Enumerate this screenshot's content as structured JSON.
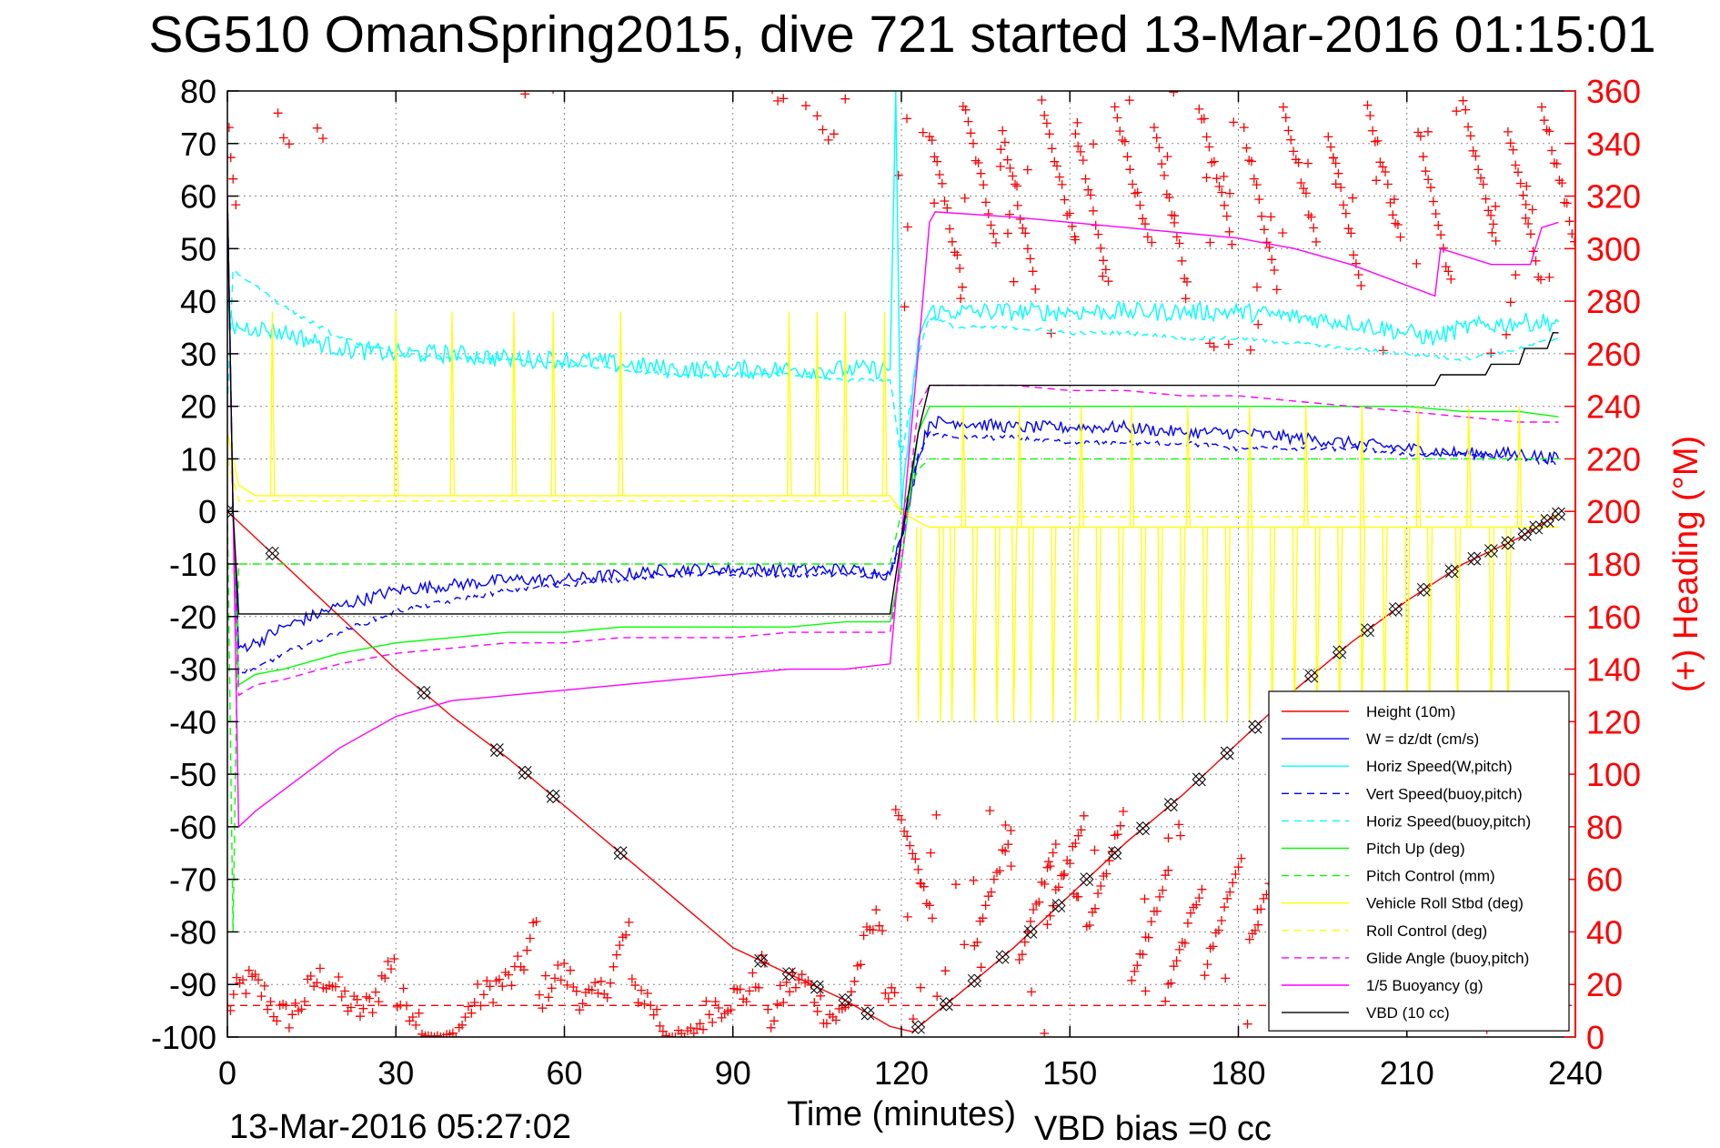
{
  "chart_data": {
    "type": "line",
    "title": "SG510 OmanSpring2015, dive 721 started 13-Mar-2016 01:15:01",
    "xlabel": "Time (minutes)",
    "ylabel": "",
    "y2label": "(+) Heading (°M)",
    "xlim": [
      0,
      240
    ],
    "ylim": [
      -100,
      80
    ],
    "y2lim": [
      0,
      360
    ],
    "x_ticks": [
      "0",
      "30",
      "60",
      "90",
      "120",
      "150",
      "180",
      "210",
      "240"
    ],
    "y_ticks": [
      "80",
      "70",
      "60",
      "50",
      "40",
      "30",
      "20",
      "10",
      "0",
      "-10",
      "-20",
      "-30",
      "-40",
      "-50",
      "-60",
      "-70",
      "-80",
      "-90",
      "-100"
    ],
    "y2_ticks": [
      "360",
      "340",
      "320",
      "300",
      "280",
      "260",
      "240",
      "220",
      "200",
      "180",
      "160",
      "140",
      "120",
      "100",
      "80",
      "60",
      "40",
      "20",
      "0"
    ],
    "grid": true,
    "footer_left": "13-Mar-2016 05:27:02",
    "footer_right": "VBD bias =0 cc",
    "legend_placement": "bottom-right",
    "series": [
      {
        "name": "Height (10m)",
        "color": "#ff0000",
        "style": "solid",
        "x": [
          0,
          10,
          20,
          30,
          40,
          50,
          60,
          70,
          80,
          90,
          100,
          110,
          118,
          122,
          130,
          140,
          150,
          160,
          170,
          180,
          190,
          200,
          210,
          220,
          230,
          237
        ],
        "y": [
          0,
          -10,
          -20,
          -30,
          -39,
          -47,
          -56,
          -65,
          -74,
          -83,
          -88,
          -93,
          -98,
          -99,
          -92,
          -83,
          -73,
          -63,
          -54,
          -44,
          -34,
          -25,
          -17,
          -10,
          -5,
          -0.5
        ]
      },
      {
        "name": "W = dz/dt (cm/s)",
        "color": "#0000ff",
        "style": "solid",
        "x": [
          0,
          1,
          2,
          5,
          10,
          20,
          30,
          40,
          50,
          60,
          70,
          80,
          90,
          100,
          110,
          118,
          120,
          123,
          125,
          130,
          140,
          150,
          160,
          170,
          180,
          190,
          200,
          210,
          220,
          230,
          237
        ],
        "y": [
          60,
          0,
          -26,
          -25,
          -22,
          -18,
          -15,
          -14,
          -13,
          -13,
          -12,
          -11,
          -11,
          -11,
          -11,
          -12,
          -5,
          10,
          17,
          17,
          16,
          16,
          16,
          15,
          15,
          14,
          13,
          12,
          11,
          11,
          10
        ]
      },
      {
        "name": "Horiz Speed(W,pitch)",
        "color": "#00ffff",
        "style": "solid",
        "x": [
          0,
          1,
          2,
          5,
          10,
          20,
          30,
          40,
          50,
          60,
          70,
          80,
          90,
          100,
          110,
          118,
          119,
          120,
          123,
          125,
          130,
          140,
          150,
          160,
          170,
          180,
          190,
          200,
          210,
          215,
          220,
          230,
          237
        ],
        "y": [
          40,
          35,
          35,
          35,
          34,
          31,
          30,
          30,
          29,
          29,
          28,
          27,
          27,
          27,
          27,
          27,
          80,
          0,
          33,
          38,
          38,
          38,
          38,
          38,
          38,
          38,
          37,
          36,
          34,
          33,
          35,
          36,
          36
        ]
      },
      {
        "name": "Vert Speed(buoy,pitch)",
        "color": "#0000ff",
        "style": "dashed",
        "x": [
          0,
          1,
          2,
          5,
          10,
          20,
          30,
          40,
          50,
          60,
          70,
          80,
          90,
          100,
          110,
          118,
          120,
          123,
          125,
          130,
          140,
          150,
          160,
          170,
          180,
          190,
          200,
          210,
          220,
          230,
          237
        ],
        "y": [
          60,
          0,
          -31,
          -30,
          -27,
          -23,
          -19,
          -17,
          -15,
          -14,
          -13,
          -12,
          -12,
          -12,
          -12,
          -12,
          -5,
          11,
          15,
          14,
          14,
          13,
          13,
          13,
          12,
          12,
          12,
          11,
          11,
          10,
          9
        ]
      },
      {
        "name": "Horiz Speed(buoy,pitch)",
        "color": "#00ffff",
        "style": "dashed",
        "x": [
          0,
          1,
          2,
          5,
          10,
          20,
          30,
          40,
          50,
          60,
          70,
          80,
          90,
          100,
          110,
          118,
          120,
          123,
          125,
          130,
          140,
          150,
          160,
          170,
          180,
          190,
          200,
          210,
          220,
          230,
          237
        ],
        "y": [
          20,
          46,
          45,
          43,
          39,
          33,
          30,
          29,
          29,
          28,
          27,
          26,
          26,
          26,
          25,
          25,
          10,
          30,
          37,
          35,
          35,
          34,
          34,
          33,
          33,
          32,
          31,
          30,
          29,
          31,
          33
        ]
      },
      {
        "name": "Pitch Up (deg)",
        "color": "#00ff00",
        "style": "solid",
        "x": [
          0,
          1,
          2,
          5,
          10,
          20,
          30,
          40,
          50,
          60,
          70,
          80,
          90,
          100,
          110,
          118,
          120,
          123,
          125,
          130,
          140,
          150,
          160,
          170,
          180,
          190,
          200,
          210,
          220,
          230,
          237
        ],
        "y": [
          60,
          0,
          -33,
          -31,
          -30,
          -27,
          -25,
          -24,
          -23,
          -23,
          -22,
          -22,
          -22,
          -22,
          -21,
          -21,
          -10,
          15,
          20,
          20,
          20,
          20,
          20,
          20,
          20,
          20,
          20,
          20,
          19,
          19,
          18
        ]
      },
      {
        "name": "Pitch Control (mm)",
        "color": "#00ff00",
        "style": "dashed",
        "x": [
          0,
          1,
          2,
          3,
          118,
          120,
          123,
          125,
          237
        ],
        "y": [
          0,
          -80,
          -10,
          -10,
          -10,
          0,
          8,
          10,
          10
        ]
      },
      {
        "name": "Vehicle Roll Stbd (deg)",
        "color": "#ffff00",
        "style": "solid",
        "x": [
          0,
          2,
          5,
          30,
          60,
          90,
          118,
          120,
          123,
          125,
          150,
          180,
          210,
          237
        ],
        "y": [
          15,
          5,
          3,
          3,
          3,
          3,
          3,
          0,
          -2,
          -3,
          -3,
          -3,
          -3,
          -3
        ]
      },
      {
        "name": "Roll Control (deg)",
        "color": "#ffff00",
        "style": "dashed",
        "x": [
          0,
          2,
          5,
          30,
          60,
          90,
          118,
          120,
          123,
          125,
          150,
          180,
          210,
          237
        ],
        "y": [
          10,
          2,
          2,
          2,
          2,
          2,
          2,
          0,
          -1,
          -1,
          -1,
          -1,
          -1,
          -1
        ]
      },
      {
        "name": "Glide Angle (buoy,pitch)",
        "color": "#ff00ff",
        "style": "dashed",
        "x": [
          0,
          1,
          2,
          5,
          10,
          20,
          30,
          40,
          50,
          60,
          70,
          80,
          90,
          100,
          110,
          118,
          120,
          123,
          125,
          130,
          140,
          150,
          160,
          170,
          180,
          190,
          200,
          210,
          220,
          230,
          237
        ],
        "y": [
          60,
          0,
          -35,
          -33,
          -32,
          -29,
          -27,
          -26,
          -25,
          -25,
          -24,
          -24,
          -24,
          -23,
          -23,
          -23,
          -10,
          20,
          24,
          24,
          24,
          23,
          23,
          22,
          22,
          21,
          20,
          19,
          18,
          17,
          17
        ]
      },
      {
        "name": "1/5 Buoyancy (g)",
        "color": "#ff00ff",
        "style": "solid",
        "x": [
          0,
          1,
          2,
          5,
          10,
          20,
          30,
          40,
          50,
          60,
          70,
          80,
          90,
          100,
          110,
          118,
          120,
          123,
          125,
          126,
          140,
          150,
          160,
          170,
          180,
          190,
          200,
          210,
          215,
          216,
          225,
          232,
          234,
          237
        ],
        "y": [
          60,
          0,
          -60,
          -57,
          -53,
          -45,
          -39,
          -36,
          -35,
          -34,
          -33,
          -32,
          -31,
          -30,
          -30,
          -29,
          -5,
          30,
          55,
          57,
          56,
          55,
          54,
          53,
          52,
          50,
          47,
          43,
          41,
          50,
          47,
          47,
          54,
          55
        ]
      },
      {
        "name": "VBD (10 cc)",
        "color": "#000000",
        "style": "solid",
        "x": [
          0,
          1,
          2,
          118,
          120,
          123,
          125,
          215,
          216,
          224,
          225,
          230,
          231,
          235,
          236,
          237
        ],
        "y": [
          60,
          0,
          -19.5,
          -19.5,
          -5,
          15,
          24,
          24,
          26,
          26,
          28,
          28,
          31,
          31,
          34,
          34
        ]
      }
    ],
    "heading": {
      "name": "(+) Heading (°M)",
      "color": "#ff0000",
      "marker": "+"
    }
  }
}
